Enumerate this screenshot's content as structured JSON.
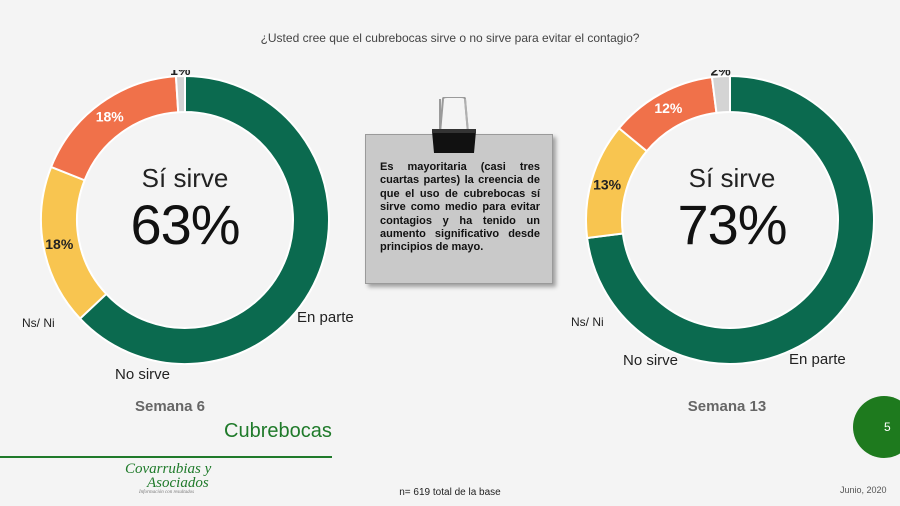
{
  "question": "¿Usted cree que el cubrebocas sirve o no sirve para evitar el contagio?",
  "note": "Es mayoritaria (casi tres cuartas partes) la creencia de que el uso de cubrebocas sí sirve como medio para evitar contagios y ha tenido un aumento significativo desde principios de mayo.",
  "section_title": "Cubrebocas",
  "page_number": "5",
  "logo": {
    "line1": "Covarrubias y",
    "line2": "Asociados",
    "tagline": "Información con resultados"
  },
  "base_note": "n= 619 total de la base",
  "date": "Junio, 2020",
  "colors": {
    "si": "#0b6a4f",
    "en_parte": "#f8c550",
    "no": "#f0714a",
    "nsni": "#d4d4d4",
    "brand": "#1f7a2a"
  },
  "chart_data": [
    {
      "type": "pie",
      "variant": "donut",
      "week_label": "Semana 6",
      "center_label": "Sí sirve",
      "center_value": "63%",
      "slices": [
        {
          "name": "Sí sirve",
          "value": 63,
          "label": ""
        },
        {
          "name": "En parte",
          "value": 18,
          "label": "18%"
        },
        {
          "name": "No sirve",
          "value": 18,
          "label": "18%"
        },
        {
          "name": "Ns/ Ni",
          "value": 1,
          "label": "1%"
        }
      ]
    },
    {
      "type": "pie",
      "variant": "donut",
      "week_label": "Semana 13",
      "center_label": "Sí sirve",
      "center_value": "73%",
      "slices": [
        {
          "name": "Sí sirve",
          "value": 73,
          "label": ""
        },
        {
          "name": "En parte",
          "value": 13,
          "label": "13%"
        },
        {
          "name": "No sirve",
          "value": 12,
          "label": "12%"
        },
        {
          "name": "Ns/ Ni",
          "value": 2,
          "label": "2%"
        }
      ]
    }
  ]
}
